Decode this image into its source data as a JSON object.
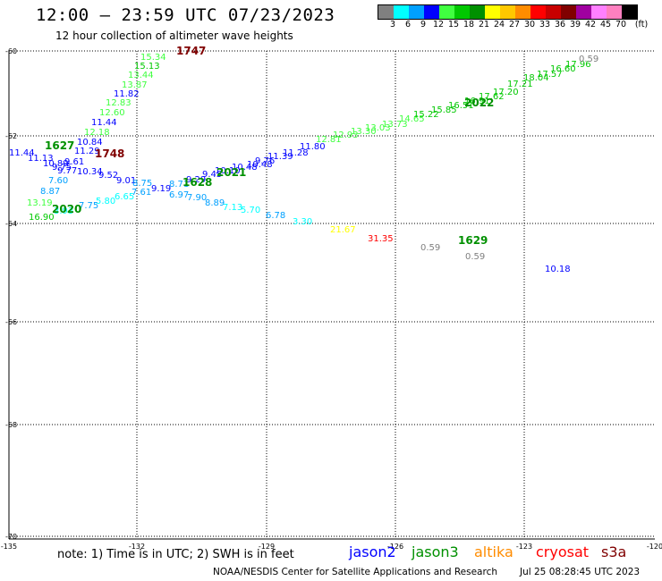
{
  "title": "12:00 – 23:59 UTC 07/23/2023",
  "subtitle": "12 hour collection of altimeter wave heights",
  "colorbar": {
    "unit": "(ft)",
    "swatches": [
      "#808080",
      "#00ffff",
      "#00a0ff",
      "#0000ff",
      "#40ff40",
      "#00c800",
      "#009000",
      "#ffff00",
      "#ffc800",
      "#ff8c00",
      "#ff0000",
      "#c80000",
      "#800000",
      "#a000a0",
      "#ff80ff",
      "#ff80c0",
      "#000000"
    ],
    "labels": [
      "3",
      "6",
      "9",
      "12",
      "15",
      "18",
      "21",
      "24",
      "27",
      "30",
      "33",
      "36",
      "39",
      "42",
      "45",
      "70"
    ]
  },
  "map": {
    "lon_ticks": [
      "-135",
      "-132",
      "-129",
      "-126",
      "-123",
      "-120"
    ],
    "lat_ticks": [
      "-60",
      "-62",
      "-64",
      "-66",
      "-68",
      "-70"
    ]
  },
  "track_labels": [
    {
      "text": "15.34",
      "color": "#40ff40"
    },
    {
      "text": "15.13",
      "color": "#00c800"
    },
    {
      "text": "13.44",
      "color": "#40ff40"
    },
    {
      "text": "13.87",
      "color": "#40ff40"
    },
    {
      "text": "11.82",
      "color": "#0000ff"
    },
    {
      "text": "12.83",
      "color": "#40ff40"
    },
    {
      "text": "12.60",
      "color": "#40ff40"
    },
    {
      "text": "11.44",
      "color": "#0000ff"
    },
    {
      "text": "12.18",
      "color": "#40ff40"
    },
    {
      "text": "10.84",
      "color": "#0000ff"
    },
    {
      "text": "11.44",
      "color": "#0000ff"
    },
    {
      "text": "11.29",
      "color": "#0000ff"
    },
    {
      "text": "11.13",
      "color": "#0000ff"
    },
    {
      "text": "9.61",
      "color": "#0000ff"
    },
    {
      "text": "10.89",
      "color": "#0000ff"
    },
    {
      "text": "9.75",
      "color": "#0000ff"
    },
    {
      "text": "9.77",
      "color": "#0000ff"
    },
    {
      "text": "10.34",
      "color": "#0000ff"
    },
    {
      "text": "9.52",
      "color": "#0000ff"
    },
    {
      "text": "9.01",
      "color": "#0000ff"
    },
    {
      "text": "7.60",
      "color": "#00a0ff"
    },
    {
      "text": "8.87",
      "color": "#00a0ff"
    },
    {
      "text": "13.19",
      "color": "#40ff40"
    },
    {
      "text": "3.93",
      "color": "#00ffff"
    },
    {
      "text": "7.75",
      "color": "#00a0ff"
    },
    {
      "text": "16.90",
      "color": "#00c800"
    },
    {
      "text": "5.80",
      "color": "#00ffff"
    },
    {
      "text": "6.65",
      "color": "#00ffff"
    },
    {
      "text": "7.61",
      "color": "#00a0ff"
    },
    {
      "text": "8.71",
      "color": "#00a0ff"
    },
    {
      "text": "9.19",
      "color": "#0000ff"
    },
    {
      "text": "8.75",
      "color": "#00a0ff"
    },
    {
      "text": "6.97",
      "color": "#00a0ff"
    },
    {
      "text": "7.90",
      "color": "#00a0ff"
    },
    {
      "text": "9.29",
      "color": "#0000ff"
    },
    {
      "text": "9.45",
      "color": "#0000ff"
    },
    {
      "text": "10.10",
      "color": "#0000ff"
    },
    {
      "text": "10.48",
      "color": "#0000ff"
    },
    {
      "text": "10.48",
      "color": "#0000ff"
    },
    {
      "text": "9.76",
      "color": "#0000ff"
    },
    {
      "text": "8.89",
      "color": "#00a0ff"
    },
    {
      "text": "7.13",
      "color": "#00ffff"
    },
    {
      "text": "5.70",
      "color": "#00ffff"
    },
    {
      "text": "11.39",
      "color": "#0000ff"
    },
    {
      "text": "11.28",
      "color": "#0000ff"
    },
    {
      "text": "11.80",
      "color": "#0000ff"
    },
    {
      "text": "6.78",
      "color": "#00a0ff"
    },
    {
      "text": "3.30",
      "color": "#00ffff"
    },
    {
      "text": "12.81",
      "color": "#40ff40"
    },
    {
      "text": "12.93",
      "color": "#40ff40"
    },
    {
      "text": "13.30",
      "color": "#40ff40"
    },
    {
      "text": "13.03",
      "color": "#40ff40"
    },
    {
      "text": "13.73",
      "color": "#40ff40"
    },
    {
      "text": "14.65",
      "color": "#40ff40"
    },
    {
      "text": "15.22",
      "color": "#00c800"
    },
    {
      "text": "15.85",
      "color": "#00c800"
    },
    {
      "text": "16.51",
      "color": "#00c800"
    },
    {
      "text": "16.91",
      "color": "#00c800"
    },
    {
      "text": "17.62",
      "color": "#00c800"
    },
    {
      "text": "17.20",
      "color": "#00c800"
    },
    {
      "text": "17.21",
      "color": "#00c800"
    },
    {
      "text": "18.04",
      "color": "#00c800"
    },
    {
      "text": "17.57",
      "color": "#00c800"
    },
    {
      "text": "16.60",
      "color": "#00c800"
    },
    {
      "text": "17.96",
      "color": "#00c800"
    },
    {
      "text": "0.59",
      "color": "#808080"
    },
    {
      "text": "21.67",
      "color": "#ffff00"
    },
    {
      "text": "31.35",
      "color": "#ff0000"
    },
    {
      "text": "0.59",
      "color": "#808080"
    },
    {
      "text": "0.59",
      "color": "#808080"
    },
    {
      "text": "10.18",
      "color": "#0000ff"
    }
  ],
  "time_labels": [
    {
      "text": "1747",
      "color": "#800000"
    },
    {
      "text": "1627",
      "color": "#009000"
    },
    {
      "text": "1748",
      "color": "#800000"
    },
    {
      "text": "1628",
      "color": "#009000"
    },
    {
      "text": "2021",
      "color": "#009000"
    },
    {
      "text": "2020",
      "color": "#009000"
    },
    {
      "text": "2022",
      "color": "#009000"
    },
    {
      "text": "1629",
      "color": "#009000"
    }
  ],
  "footer": {
    "note": "note:  1) Time is in UTC;  2) SWH is in feet",
    "satellites": [
      {
        "name": "jason2",
        "color": "#0000ff"
      },
      {
        "name": "jason3",
        "color": "#009000"
      },
      {
        "name": "altika",
        "color": "#ff8c00"
      },
      {
        "name": "cryosat",
        "color": "#ff0000"
      },
      {
        "name": "s3a",
        "color": "#800000"
      }
    ],
    "credit": "NOAA/NESDIS Center for Satellite Applications and Research",
    "generated": "Jul 25 08:28:45 UTC 2023"
  }
}
